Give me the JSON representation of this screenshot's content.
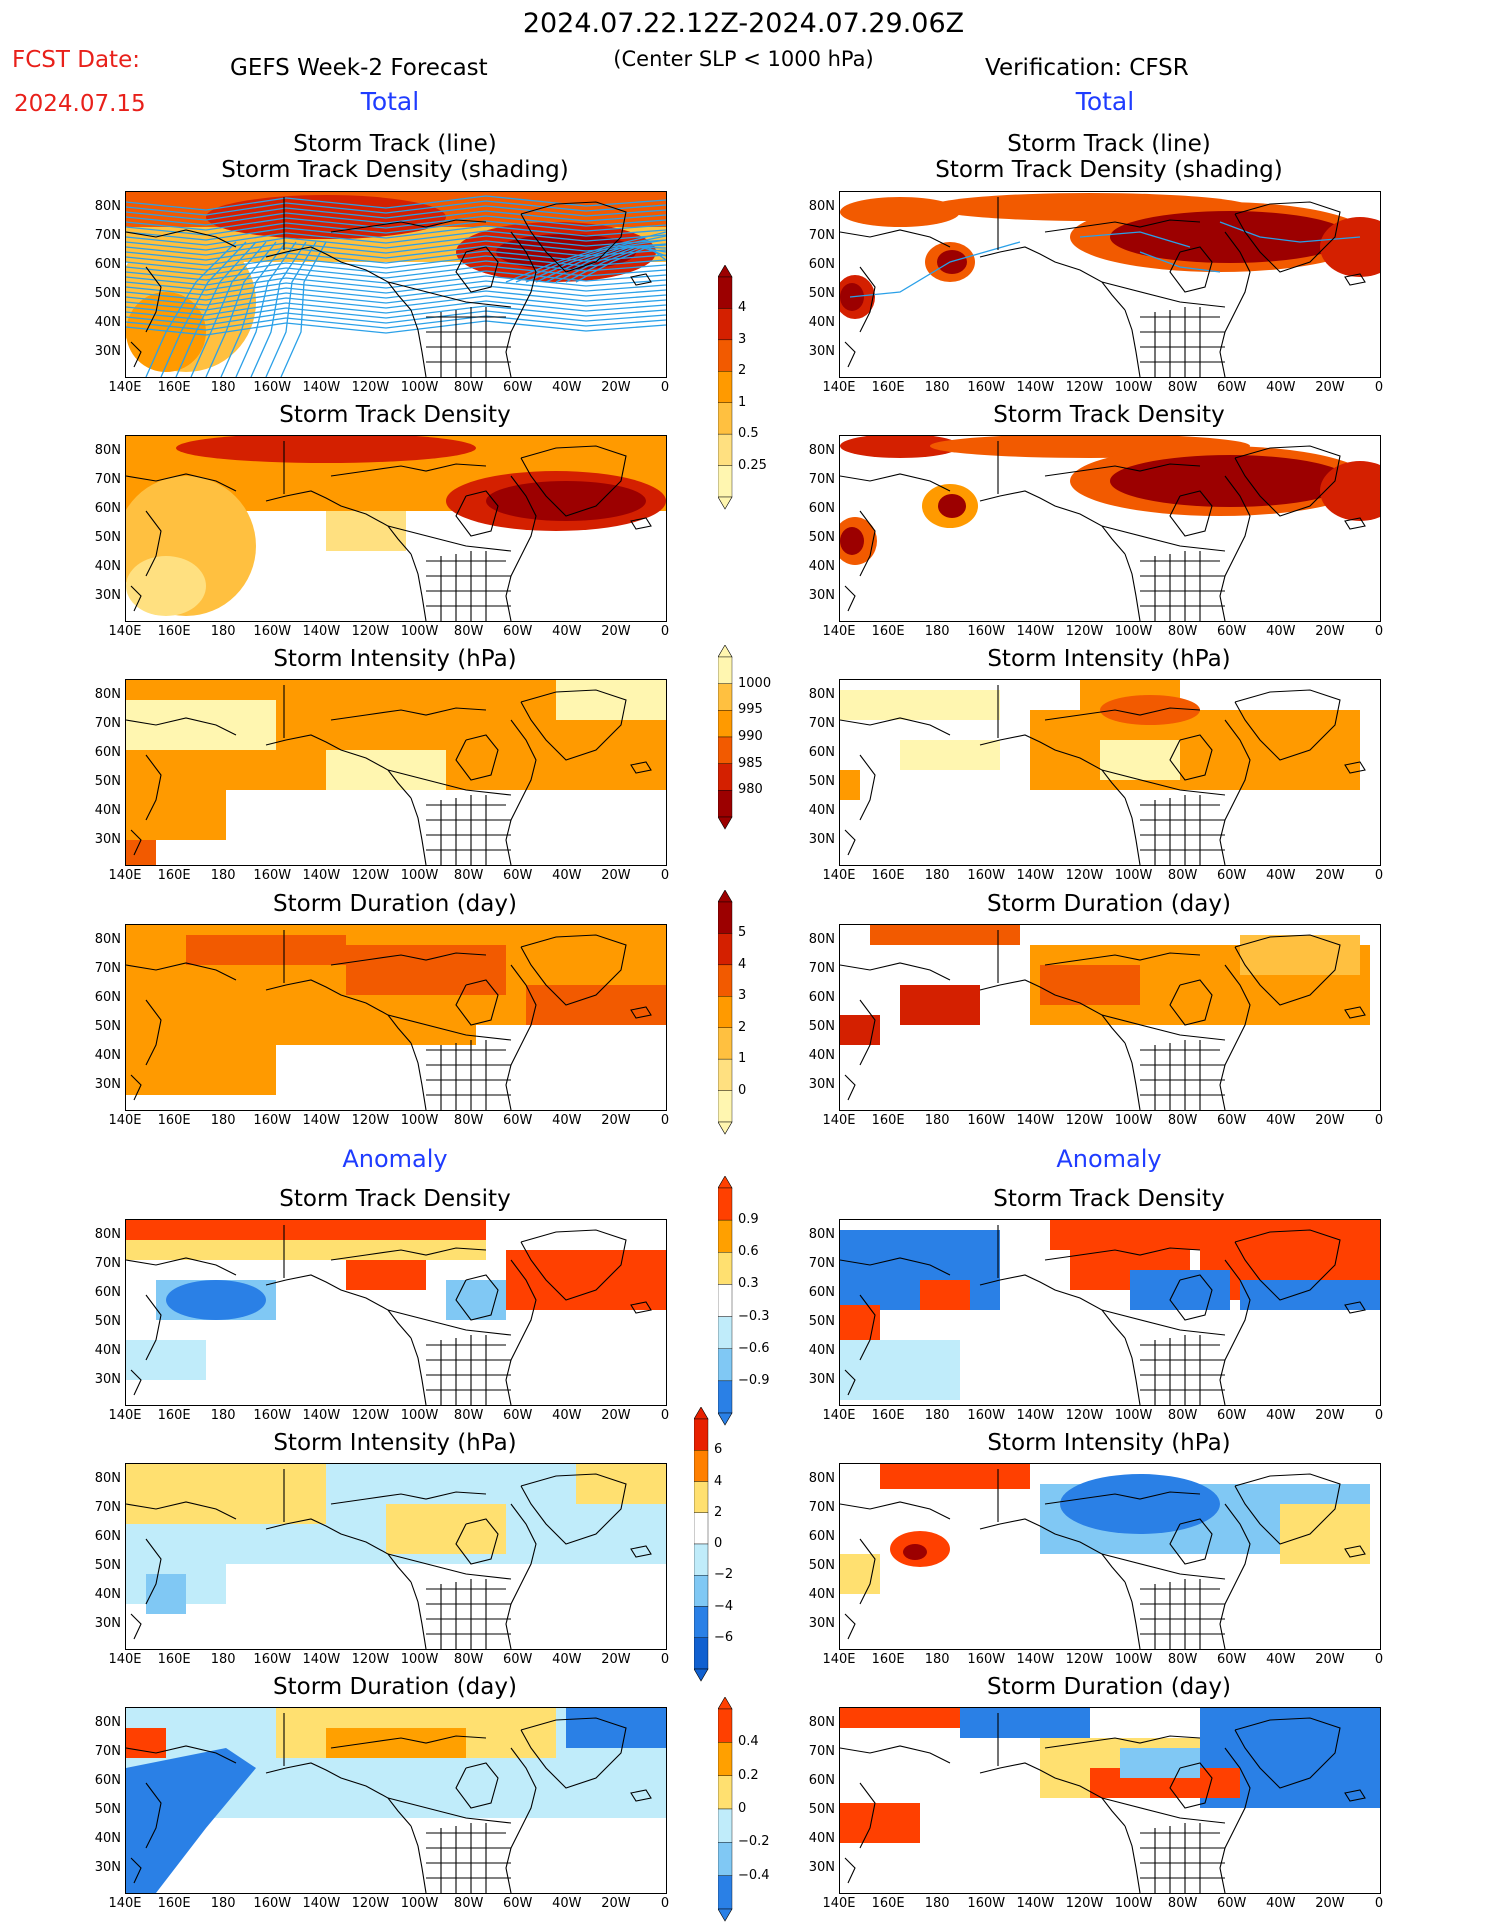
{
  "header": {
    "fcst_label": "FCST Date:",
    "fcst_date": "2024.07.15",
    "period": "2024.07.22.12Z-2024.07.29.06Z",
    "criterion": "(Center SLP < 1000 hPa)",
    "left_title": "GEFS Week-2 Forecast",
    "right_title": "Verification: CFSR",
    "total_label": "Total",
    "anomaly_label": "Anomaly"
  },
  "axes": {
    "lat_labels": [
      "80N",
      "70N",
      "60N",
      "50N",
      "40N",
      "30N"
    ],
    "lon_labels": [
      "140E",
      "160E",
      "180",
      "160W",
      "140W",
      "120W",
      "100W",
      "80W",
      "60W",
      "40W",
      "20W",
      "0"
    ]
  },
  "panels": {
    "track_title_1": "Storm Track (line)",
    "track_title_2": "Storm Track Density (shading)",
    "density": "Storm Track Density",
    "intensity": "Storm Intensity (hPa)",
    "duration": "Storm Duration (day)"
  },
  "colorbars": {
    "density_total": [
      "4",
      "3",
      "2",
      "1",
      "0.5",
      "0.25"
    ],
    "intensity_total": [
      "1000",
      "995",
      "990",
      "985",
      "980"
    ],
    "duration_total": [
      "5",
      "4",
      "3",
      "2",
      "1",
      "0"
    ],
    "density_anom": [
      "0.9",
      "0.6",
      "0.3",
      "−0.3",
      "−0.6",
      "−0.9"
    ],
    "intensity_anom": [
      "6",
      "4",
      "2",
      "0",
      "−2",
      "−4",
      "−6"
    ],
    "duration_anom": [
      "0.4",
      "0.2",
      "0",
      "−0.2",
      "−0.4"
    ]
  },
  "palette": {
    "warm": [
      "#fff6b0",
      "#ffe080",
      "#ffc040",
      "#ff9a00",
      "#f25a00",
      "#d42000",
      "#9c0000"
    ],
    "cool": [
      "#c8f0fa",
      "#90d8f6",
      "#4fb0f0",
      "#2070e0"
    ],
    "anom_warm": [
      "#ffe070",
      "#ffa000",
      "#ff4000"
    ],
    "anom_cool": [
      "#c0ecfa",
      "#80c8f4",
      "#2a80e6"
    ],
    "track_line": "#2aa0e8",
    "land_line": "#000000"
  }
}
